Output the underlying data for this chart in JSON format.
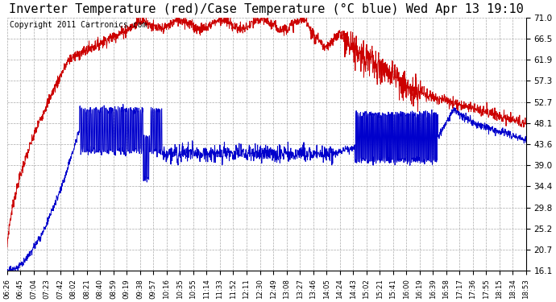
{
  "title": "Inverter Temperature (red)/Case Temperature (°C blue) Wed Apr 13 19:10",
  "copyright": "Copyright 2011 Cartronics.com",
  "yticks": [
    16.1,
    20.7,
    25.2,
    29.8,
    34.4,
    39.0,
    43.6,
    48.1,
    52.7,
    57.3,
    61.9,
    66.5,
    71.0
  ],
  "xtick_labels": [
    "06:26",
    "06:45",
    "07:04",
    "07:23",
    "07:42",
    "08:02",
    "08:21",
    "08:40",
    "08:59",
    "09:19",
    "09:38",
    "09:57",
    "10:16",
    "10:35",
    "10:55",
    "11:14",
    "11:33",
    "11:52",
    "12:11",
    "12:30",
    "12:49",
    "13:08",
    "13:27",
    "13:46",
    "14:05",
    "14:24",
    "14:43",
    "15:02",
    "15:21",
    "15:41",
    "16:00",
    "16:19",
    "16:39",
    "16:58",
    "17:17",
    "17:36",
    "17:55",
    "18:15",
    "18:34",
    "18:53"
  ],
  "bg_color": "#ffffff",
  "grid_color": "#aaaaaa",
  "red_color": "#cc0000",
  "blue_color": "#0000cc",
  "title_fontsize": 11,
  "copyright_fontsize": 7,
  "ymin": 16.1,
  "ymax": 71.0
}
